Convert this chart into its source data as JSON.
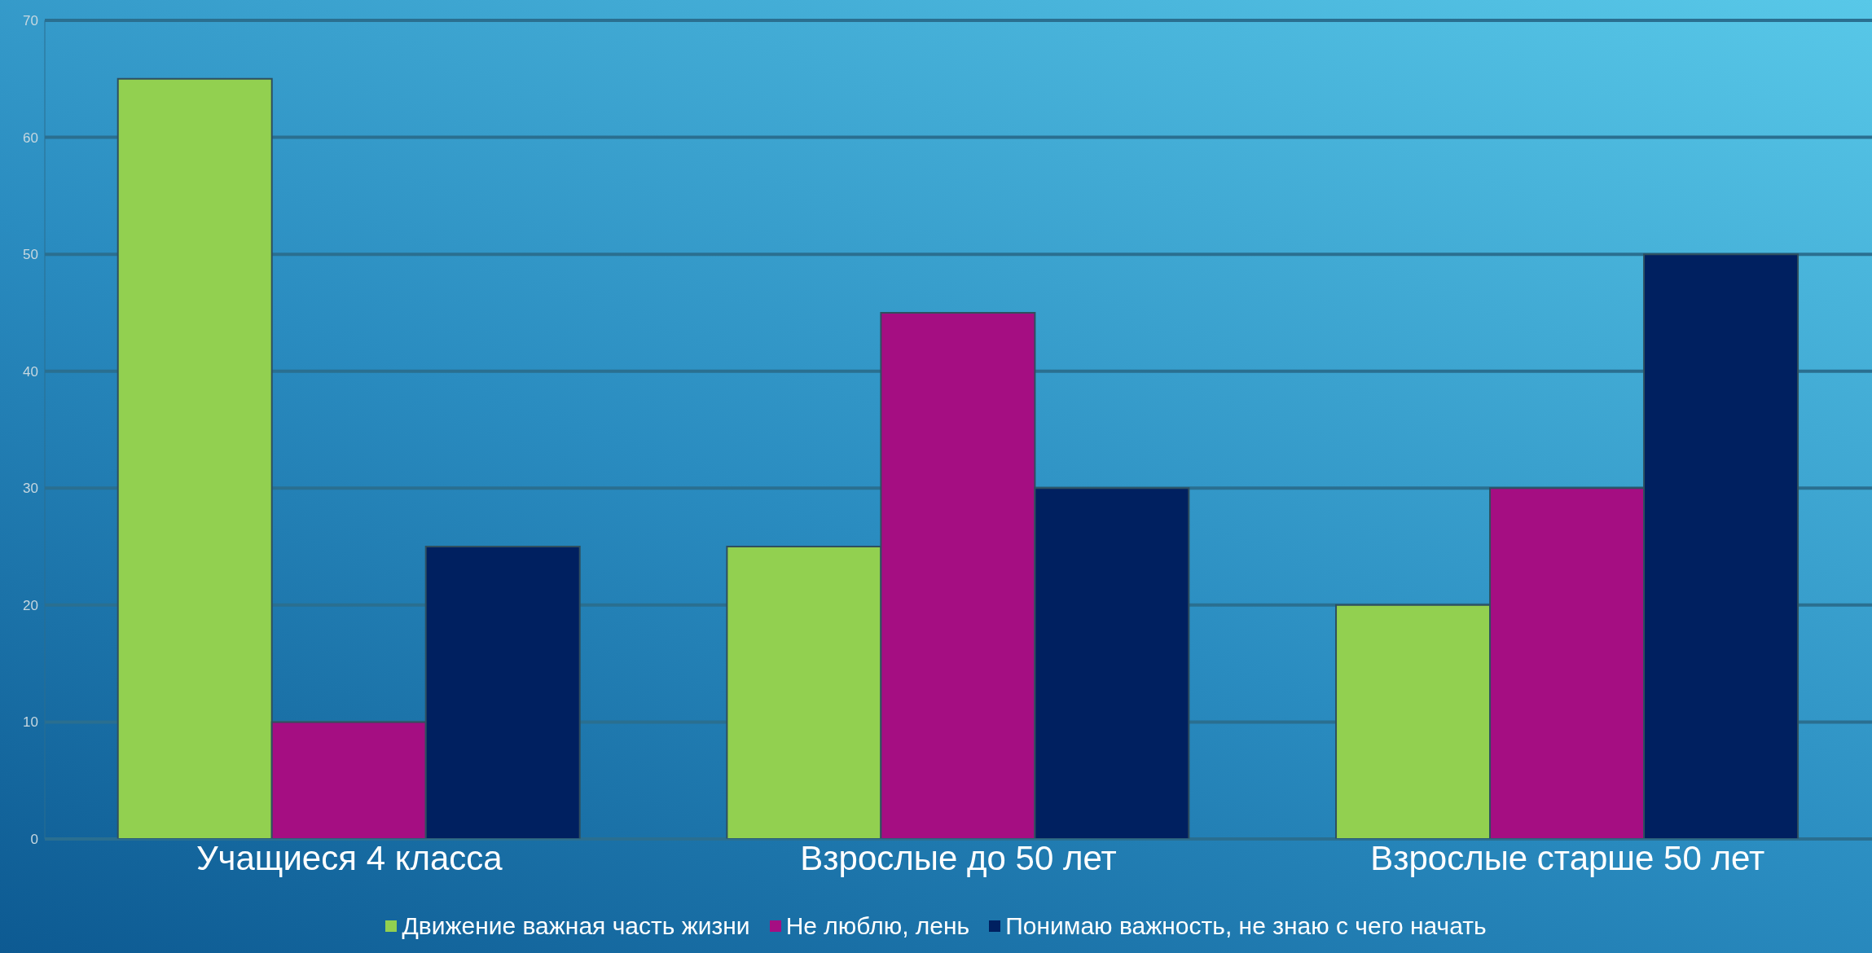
{
  "chart_data": {
    "type": "bar",
    "categories": [
      "Учащиеся 4 класса",
      "Взрослые до 50 лет",
      "Взрослые старше 50 лет"
    ],
    "series": [
      {
        "name": "Движение важная часть жизни",
        "color": "#92d050",
        "values": [
          65,
          25,
          20
        ]
      },
      {
        "name": "Не люблю, лень",
        "color": "#a50e82",
        "values": [
          10,
          45,
          30
        ]
      },
      {
        "name": "Понимаю важность, не знаю с чего начать",
        "color": "#002060",
        "values": [
          25,
          30,
          50
        ]
      }
    ],
    "ylim": [
      0,
      70
    ],
    "yticks": [
      0,
      10,
      20,
      30,
      40,
      50,
      60,
      70
    ],
    "grid": "y",
    "legend": "bottom"
  }
}
